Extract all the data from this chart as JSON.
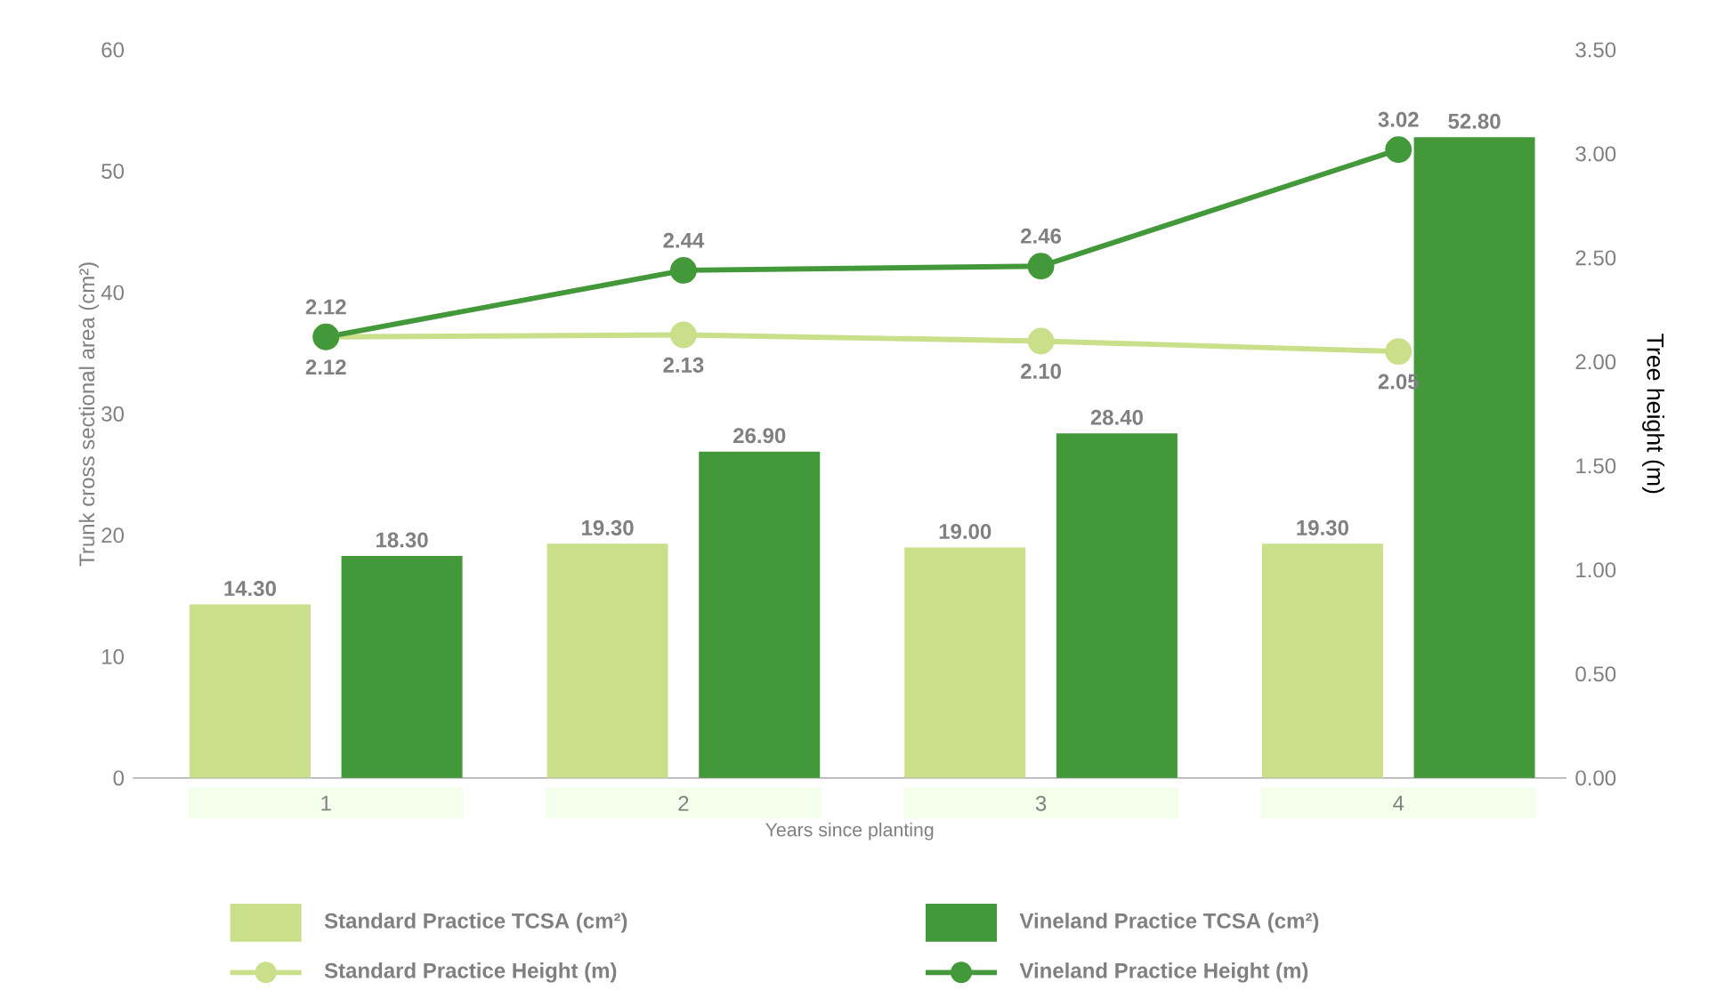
{
  "chart_data": {
    "type": "bar",
    "categories": [
      "1",
      "2",
      "3",
      "4"
    ],
    "xlabel": "Years since planting",
    "ylabel": "Trunk cross sectional area (cm²)",
    "y2label": "Tree height (m)",
    "ylim": [
      0,
      60
    ],
    "yticks": [
      0,
      10,
      20,
      30,
      40,
      50,
      60
    ],
    "y2lim": [
      0,
      3.5
    ],
    "y2ticks": [
      {
        "value": 0,
        "label": "0.00"
      },
      {
        "value": 0.5,
        "label": "0.50"
      },
      {
        "value": 1,
        "label": "1.00"
      },
      {
        "value": 1.5,
        "label": "1.50"
      },
      {
        "value": 2,
        "label": "2.00"
      },
      {
        "value": 2.5,
        "label": "2.50"
      },
      {
        "value": 3,
        "label": "3.00"
      },
      {
        "value": 3.5,
        "label": "3.50"
      }
    ],
    "legend": "bottom",
    "marker": "circle",
    "series": [
      {
        "name": "Standard Practice TCSA (cm²)",
        "color": "#c9df8a",
        "values": [
          14.3,
          19.3,
          19.0,
          19.3
        ],
        "value_labels": [
          "14.30",
          "19.30",
          "19.00",
          "19.30"
        ]
      },
      {
        "name": "Vineland Practice TCSA (cm²)",
        "color": "#43983a",
        "values": [
          18.3,
          26.9,
          28.4,
          52.8
        ],
        "value_labels": [
          "18.30",
          "26.90",
          "28.40",
          "52.80"
        ]
      },
      {
        "name": "Standard Practice Height (m)",
        "type": "line",
        "axis": "y2",
        "color": "#c9df8a",
        "values": [
          2.12,
          2.13,
          2.1,
          2.05
        ],
        "value_labels": [
          "2.12",
          "2.13",
          "2.10",
          "2.05"
        ]
      },
      {
        "name": "Vineland Practice Height (m)",
        "type": "line",
        "axis": "y2",
        "color": "#43983a",
        "values": [
          2.12,
          2.44,
          2.46,
          3.02
        ],
        "value_labels": [
          "2.12",
          "2.44",
          "2.46",
          "3.02"
        ]
      }
    ]
  }
}
